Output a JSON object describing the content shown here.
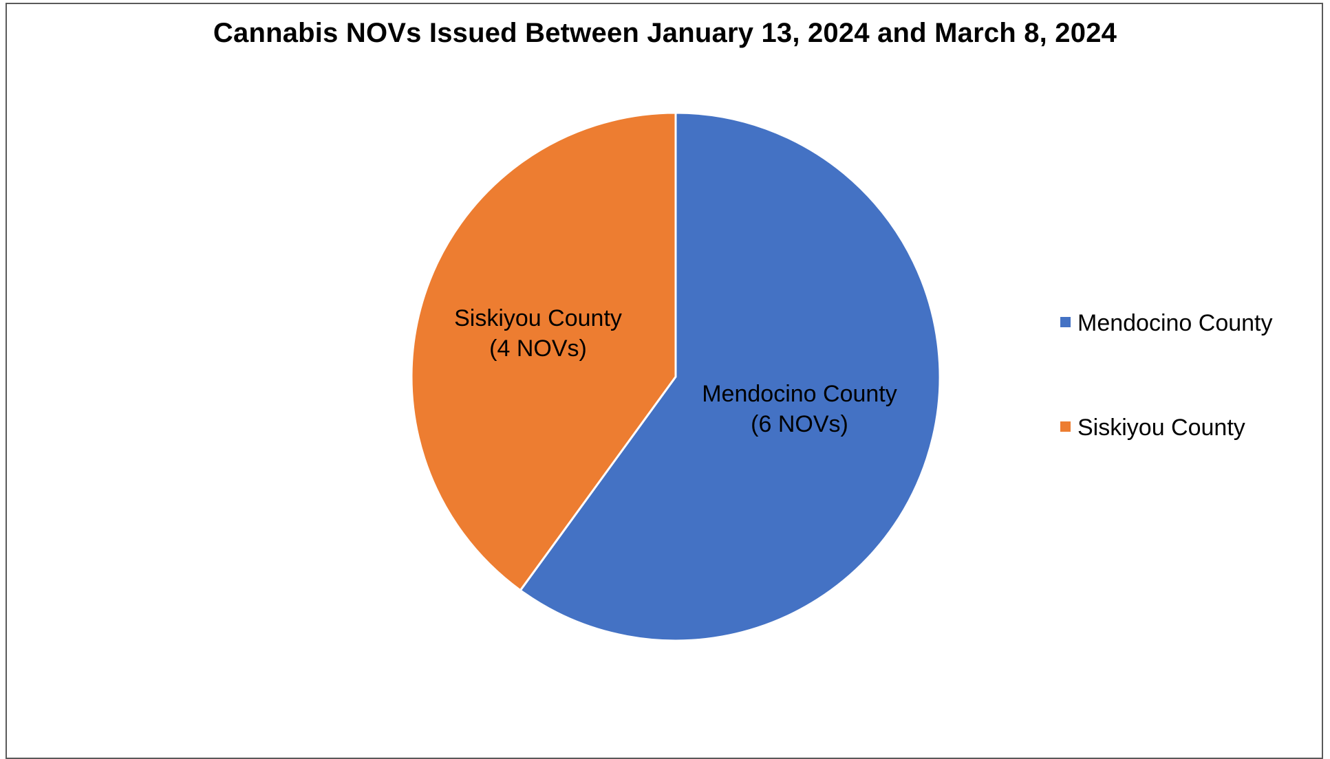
{
  "chart_data": {
    "type": "pie",
    "title": "Cannabis NOVs Issued Between January 13, 2024 and March 8, 2024",
    "slices": [
      {
        "name": "Mendocino County",
        "value": 6,
        "label_line1": "Mendocino County",
        "label_line2": "(6 NOVs)",
        "color": "#4472C4"
      },
      {
        "name": "Siskiyou County",
        "value": 4,
        "label_line1": "Siskiyou County",
        "label_line2": "(4 NOVs)",
        "color": "#ED7D31"
      }
    ],
    "legend": {
      "placement": "right",
      "entries": [
        "Mendocino County",
        "Siskiyou County"
      ]
    }
  }
}
